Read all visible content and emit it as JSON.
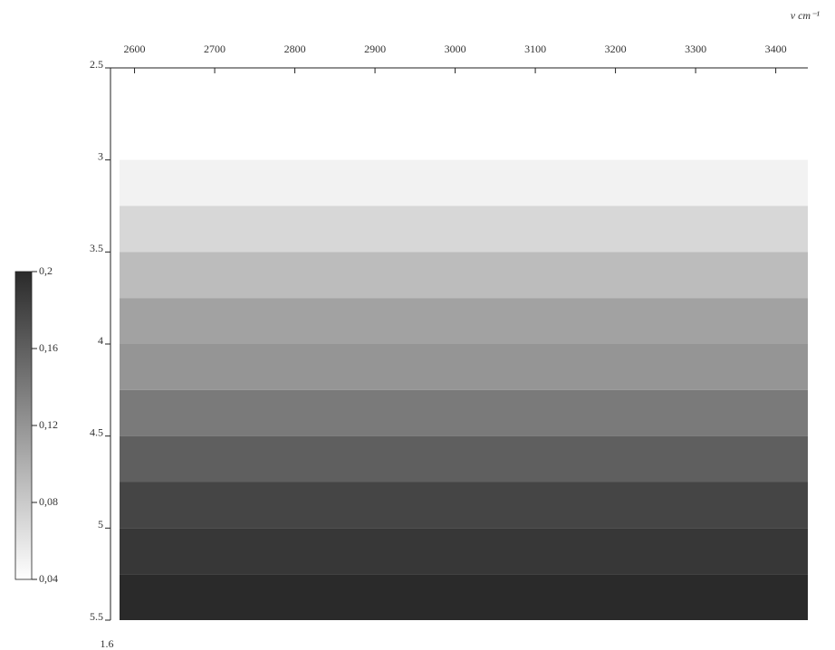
{
  "chart_data": {
    "type": "heatmap",
    "xlabel": "ν cm⁻¹",
    "xlim": [
      2570,
      3440
    ],
    "xticks": [
      2600,
      2700,
      2800,
      2900,
      3000,
      3100,
      3200,
      3300,
      3400
    ],
    "ylim": [
      2.5,
      5.5
    ],
    "yticks": [
      2.5,
      3,
      3.5,
      4,
      4.5,
      5,
      5.5
    ],
    "y_bins": [
      2.5,
      2.75,
      3,
      3.25,
      3.5,
      3.75,
      4,
      4.25,
      4.5,
      4.75,
      5,
      5.25,
      5.5
    ],
    "values": [
      0.04,
      0.04,
      0.05,
      0.07,
      0.09,
      0.11,
      0.12,
      0.14,
      0.16,
      0.18,
      0.19,
      0.2
    ],
    "colormap": [
      "#ffffff",
      "#2a2a2a"
    ],
    "clim": [
      0.04,
      0.2
    ],
    "cticks": [
      {
        "value": 0.2,
        "label": "0,2"
      },
      {
        "value": 0.16,
        "label": "0,16"
      },
      {
        "value": 0.12,
        "label": "0,12"
      },
      {
        "value": 0.08,
        "label": "0,08"
      },
      {
        "value": 0.04,
        "label": "0,04"
      }
    ],
    "annotation": "1.6"
  }
}
